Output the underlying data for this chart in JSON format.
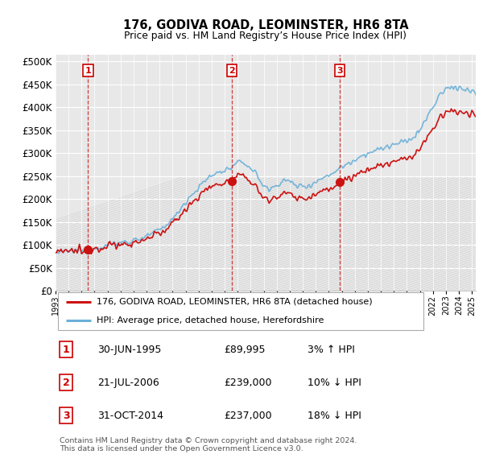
{
  "title": "176, GODIVA ROAD, LEOMINSTER, HR6 8TA",
  "subtitle": "Price paid vs. HM Land Registry’s House Price Index (HPI)",
  "ytick_vals": [
    0,
    50000,
    100000,
    150000,
    200000,
    250000,
    300000,
    350000,
    400000,
    450000,
    500000
  ],
  "ytick_labels": [
    "£0",
    "£50K",
    "£100K",
    "£150K",
    "£200K",
    "£250K",
    "£300K",
    "£350K",
    "£400K",
    "£450K",
    "£500K"
  ],
  "ylim": [
    0,
    515000
  ],
  "xlim_start": 1993.0,
  "xlim_end": 2025.3,
  "background_color": "#ffffff",
  "plot_bg_color": "#e8e8e8",
  "hpi_line_color": "#6ab0d8",
  "price_line_color": "#cc1111",
  "grid_color": "#ffffff",
  "transactions": [
    {
      "num": 1,
      "date_x": 1995.5,
      "price": 89995,
      "label": "30-JUN-1995",
      "price_str": "£89,995",
      "pct": "3%",
      "dir": "↑"
    },
    {
      "num": 2,
      "date_x": 2006.55,
      "price": 239000,
      "label": "21-JUL-2006",
      "price_str": "£239,000",
      "pct": "10%",
      "dir": "↓"
    },
    {
      "num": 3,
      "date_x": 2014.83,
      "price": 237000,
      "label": "31-OCT-2014",
      "price_str": "£237,000",
      "pct": "18%",
      "dir": "↓"
    }
  ],
  "legend_house_label": "176, GODIVA ROAD, LEOMINSTER, HR6 8TA (detached house)",
  "legend_hpi_label": "HPI: Average price, detached house, Herefordshire",
  "footer": "Contains HM Land Registry data © Crown copyright and database right 2024.\nThis data is licensed under the Open Government Licence v3.0.",
  "xtick_years": [
    1993,
    1994,
    1995,
    1996,
    1997,
    1998,
    1999,
    2000,
    2001,
    2002,
    2003,
    2004,
    2005,
    2006,
    2007,
    2008,
    2009,
    2010,
    2011,
    2012,
    2013,
    2014,
    2015,
    2016,
    2017,
    2018,
    2019,
    2020,
    2021,
    2022,
    2023,
    2024,
    2025
  ],
  "fig_width": 6.0,
  "fig_height": 5.9,
  "dpi": 100
}
